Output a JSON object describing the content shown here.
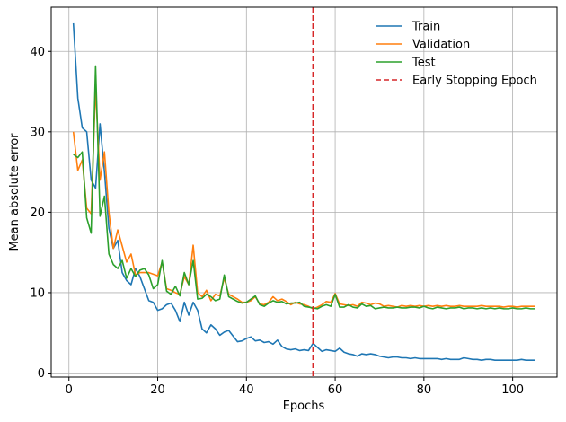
{
  "chart_data": {
    "type": "line",
    "xlabel": "Epochs",
    "ylabel": "Mean absolute error",
    "xlim": [
      -4,
      110
    ],
    "ylim": [
      -0.5,
      45.5
    ],
    "xticks": [
      0,
      20,
      40,
      60,
      80,
      100
    ],
    "yticks": [
      0,
      10,
      20,
      30,
      40
    ],
    "grid": true,
    "legend_position": "top-right",
    "vline": {
      "name": "Early Stopping Epoch",
      "x": 55,
      "color": "#d62728",
      "style": "dashed"
    },
    "x": [
      1,
      2,
      3,
      4,
      5,
      6,
      7,
      8,
      9,
      10,
      11,
      12,
      13,
      14,
      15,
      16,
      17,
      18,
      19,
      20,
      21,
      22,
      23,
      24,
      25,
      26,
      27,
      28,
      29,
      30,
      31,
      32,
      33,
      34,
      35,
      36,
      37,
      38,
      39,
      40,
      41,
      42,
      43,
      44,
      45,
      46,
      47,
      48,
      49,
      50,
      51,
      52,
      53,
      54,
      55,
      56,
      57,
      58,
      59,
      60,
      61,
      62,
      63,
      64,
      65,
      66,
      67,
      68,
      69,
      70,
      71,
      72,
      73,
      74,
      75,
      76,
      77,
      78,
      79,
      80,
      81,
      82,
      83,
      84,
      85,
      86,
      87,
      88,
      89,
      90,
      91,
      92,
      93,
      94,
      95,
      96,
      97,
      98,
      99,
      100,
      101,
      102,
      103,
      104,
      105
    ],
    "series": [
      {
        "name": "Train",
        "color": "#1f77b4",
        "values": [
          43.5,
          34.2,
          30.5,
          30.0,
          24.0,
          23.0,
          31.0,
          25.0,
          18.0,
          15.5,
          16.5,
          12.5,
          11.5,
          11.0,
          13.0,
          12.0,
          10.5,
          9.0,
          8.8,
          7.8,
          8.0,
          8.5,
          8.7,
          7.8,
          6.4,
          8.8,
          7.2,
          8.8,
          7.8,
          5.5,
          5.0,
          6.0,
          5.5,
          4.7,
          5.1,
          5.3,
          4.6,
          3.9,
          4.0,
          4.3,
          4.5,
          4.0,
          4.1,
          3.8,
          3.9,
          3.6,
          4.1,
          3.3,
          3.0,
          2.9,
          3.0,
          2.8,
          2.9,
          2.8,
          3.7,
          3.2,
          2.7,
          2.9,
          2.8,
          2.7,
          3.1,
          2.6,
          2.4,
          2.3,
          2.1,
          2.4,
          2.3,
          2.4,
          2.3,
          2.1,
          2.0,
          1.9,
          2.0,
          2.0,
          1.9,
          1.9,
          1.8,
          1.9,
          1.8,
          1.8,
          1.8,
          1.8,
          1.8,
          1.7,
          1.8,
          1.7,
          1.7,
          1.7,
          1.9,
          1.8,
          1.7,
          1.7,
          1.6,
          1.7,
          1.7,
          1.6,
          1.6,
          1.6,
          1.6,
          1.6,
          1.6,
          1.7,
          1.6,
          1.6,
          1.6
        ]
      },
      {
        "name": "Validation",
        "color": "#ff7f0e",
        "values": [
          30.0,
          25.2,
          26.5,
          20.5,
          19.8,
          35.5,
          24.0,
          27.5,
          20.0,
          15.5,
          17.8,
          15.8,
          13.8,
          14.8,
          12.2,
          12.5,
          12.5,
          12.5,
          12.3,
          12.1,
          13.8,
          10.5,
          10.3,
          10.0,
          9.8,
          12.0,
          11.0,
          15.9,
          10.0,
          9.5,
          10.3,
          9.0,
          9.8,
          9.6,
          11.8,
          9.8,
          9.5,
          9.2,
          8.8,
          8.8,
          9.0,
          9.5,
          8.6,
          8.5,
          8.8,
          9.5,
          9.0,
          9.2,
          8.9,
          8.5,
          8.8,
          8.6,
          8.5,
          8.3,
          8.0,
          8.2,
          8.5,
          8.9,
          8.8,
          9.9,
          8.6,
          8.5,
          8.4,
          8.5,
          8.3,
          8.8,
          8.7,
          8.5,
          8.7,
          8.6,
          8.3,
          8.4,
          8.3,
          8.2,
          8.4,
          8.3,
          8.4,
          8.3,
          8.4,
          8.3,
          8.4,
          8.3,
          8.4,
          8.3,
          8.4,
          8.3,
          8.3,
          8.4,
          8.3,
          8.3,
          8.3,
          8.3,
          8.4,
          8.3,
          8.3,
          8.3,
          8.3,
          8.2,
          8.3,
          8.3,
          8.2,
          8.3,
          8.3,
          8.3,
          8.3
        ]
      },
      {
        "name": "Test",
        "color": "#2ca02c",
        "values": [
          27.2,
          26.8,
          27.5,
          19.3,
          17.4,
          38.2,
          19.5,
          22.0,
          14.8,
          13.5,
          13.0,
          14.0,
          11.8,
          13.0,
          12.0,
          12.8,
          13.0,
          12.2,
          10.5,
          11.0,
          14.0,
          10.2,
          9.8,
          10.8,
          9.6,
          12.5,
          11.0,
          14.0,
          9.2,
          9.3,
          9.8,
          9.5,
          9.0,
          9.2,
          12.2,
          9.5,
          9.2,
          8.9,
          8.7,
          8.8,
          9.2,
          9.6,
          8.5,
          8.3,
          8.7,
          9.0,
          8.8,
          8.9,
          8.6,
          8.7,
          8.7,
          8.8,
          8.3,
          8.2,
          8.1,
          8.0,
          8.3,
          8.5,
          8.3,
          9.8,
          8.2,
          8.2,
          8.5,
          8.2,
          8.1,
          8.6,
          8.3,
          8.4,
          8.0,
          8.1,
          8.2,
          8.1,
          8.1,
          8.2,
          8.1,
          8.1,
          8.2,
          8.2,
          8.1,
          8.3,
          8.1,
          8.0,
          8.2,
          8.1,
          8.0,
          8.1,
          8.1,
          8.2,
          8.0,
          8.1,
          8.1,
          8.0,
          8.1,
          8.0,
          8.1,
          8.0,
          8.1,
          8.0,
          8.0,
          8.1,
          8.0,
          8.0,
          8.1,
          8.0,
          8.0
        ]
      }
    ]
  }
}
